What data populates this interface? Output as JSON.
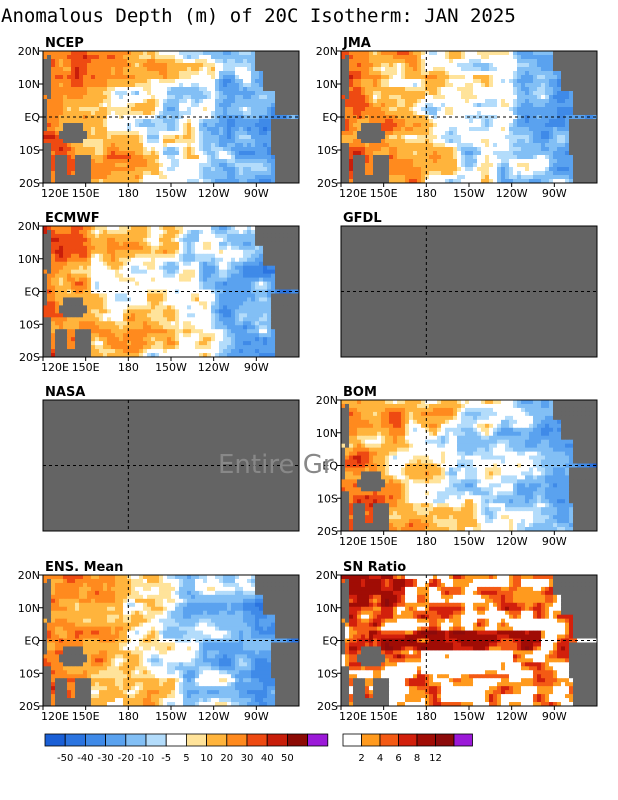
{
  "title": "Anomalous Depth (m) of 20C Isotherm: JAN 2025",
  "chart_data": [
    {
      "type": "heatmap",
      "name": "NCEP",
      "has_data": true,
      "lon_ticks": [
        "120E",
        "150E",
        "180",
        "150W",
        "120W",
        "90W"
      ],
      "lat_ticks": [
        "20N",
        "10N",
        "EQ",
        "10S",
        "20S"
      ],
      "pattern": "west-warm-east-cool"
    },
    {
      "type": "heatmap",
      "name": "JMA",
      "has_data": true,
      "lon_ticks": [
        "120E",
        "150E",
        "180",
        "150W",
        "120W",
        "90W"
      ],
      "lat_ticks": [
        "20N",
        "10N",
        "EQ",
        "10S",
        "20S"
      ],
      "pattern": "west-warm-east-cool"
    },
    {
      "type": "heatmap",
      "name": "ECMWF",
      "has_data": true,
      "lon_ticks": [
        "120E",
        "150E",
        "180",
        "150W",
        "120W",
        "90W"
      ],
      "lat_ticks": [
        "20N",
        "10N",
        "EQ",
        "10S",
        "20S"
      ],
      "pattern": "west-warm-east-cool"
    },
    {
      "type": "heatmap",
      "name": "GFDL",
      "has_data": false,
      "lon_ticks": [],
      "lat_ticks": []
    },
    {
      "type": "heatmap",
      "name": "NASA",
      "has_data": false,
      "lon_ticks": [],
      "lat_ticks": []
    },
    {
      "type": "heatmap",
      "name": "BOM",
      "has_data": true,
      "lon_ticks": [
        "120E",
        "150E",
        "180",
        "150W",
        "120W",
        "90W"
      ],
      "lat_ticks": [
        "20N",
        "10N",
        "EQ",
        "10S",
        "20S"
      ],
      "pattern": "west-warm-east-cool"
    },
    {
      "type": "heatmap",
      "name": "ENS. Mean",
      "has_data": true,
      "lon_ticks": [
        "120E",
        "150E",
        "180",
        "150W",
        "120W",
        "90W"
      ],
      "lat_ticks": [
        "20N",
        "10N",
        "EQ",
        "10S",
        "20S"
      ],
      "pattern": "west-warm-east-cool"
    },
    {
      "type": "heatmap",
      "name": "SN Ratio",
      "has_data": true,
      "lon_ticks": [
        "120E",
        "150E",
        "180",
        "150W",
        "120W",
        "90W"
      ],
      "lat_ticks": [
        "20N",
        "10N",
        "EQ",
        "10S",
        "20S"
      ],
      "pattern": "signal-noise"
    }
  ],
  "overlay_text": "Entire Gr",
  "colorbar_anomaly": {
    "labels": [
      "-50",
      "-40",
      "-30",
      "-20",
      "-10",
      "-5",
      "5",
      "10",
      "20",
      "30",
      "40",
      "50"
    ],
    "colors": [
      "#1a5fd6",
      "#2b74e0",
      "#3f8ae8",
      "#5aa2ef",
      "#82bff5",
      "#b3dcfb",
      "#ffffff",
      "#ffe39a",
      "#ffb43c",
      "#ff8a1e",
      "#ee4a12",
      "#c81e0a",
      "#8c0b05",
      "#9b19d8"
    ]
  },
  "colorbar_sn": {
    "labels": [
      "2",
      "4",
      "6",
      "8",
      "12"
    ],
    "colors": [
      "#ffffff",
      "#ff9a1e",
      "#f45a14",
      "#d2200c",
      "#a00c05",
      "#8c0b0b",
      "#9b19d8"
    ]
  },
  "land_color": "#666666",
  "missing_color": "#646464"
}
